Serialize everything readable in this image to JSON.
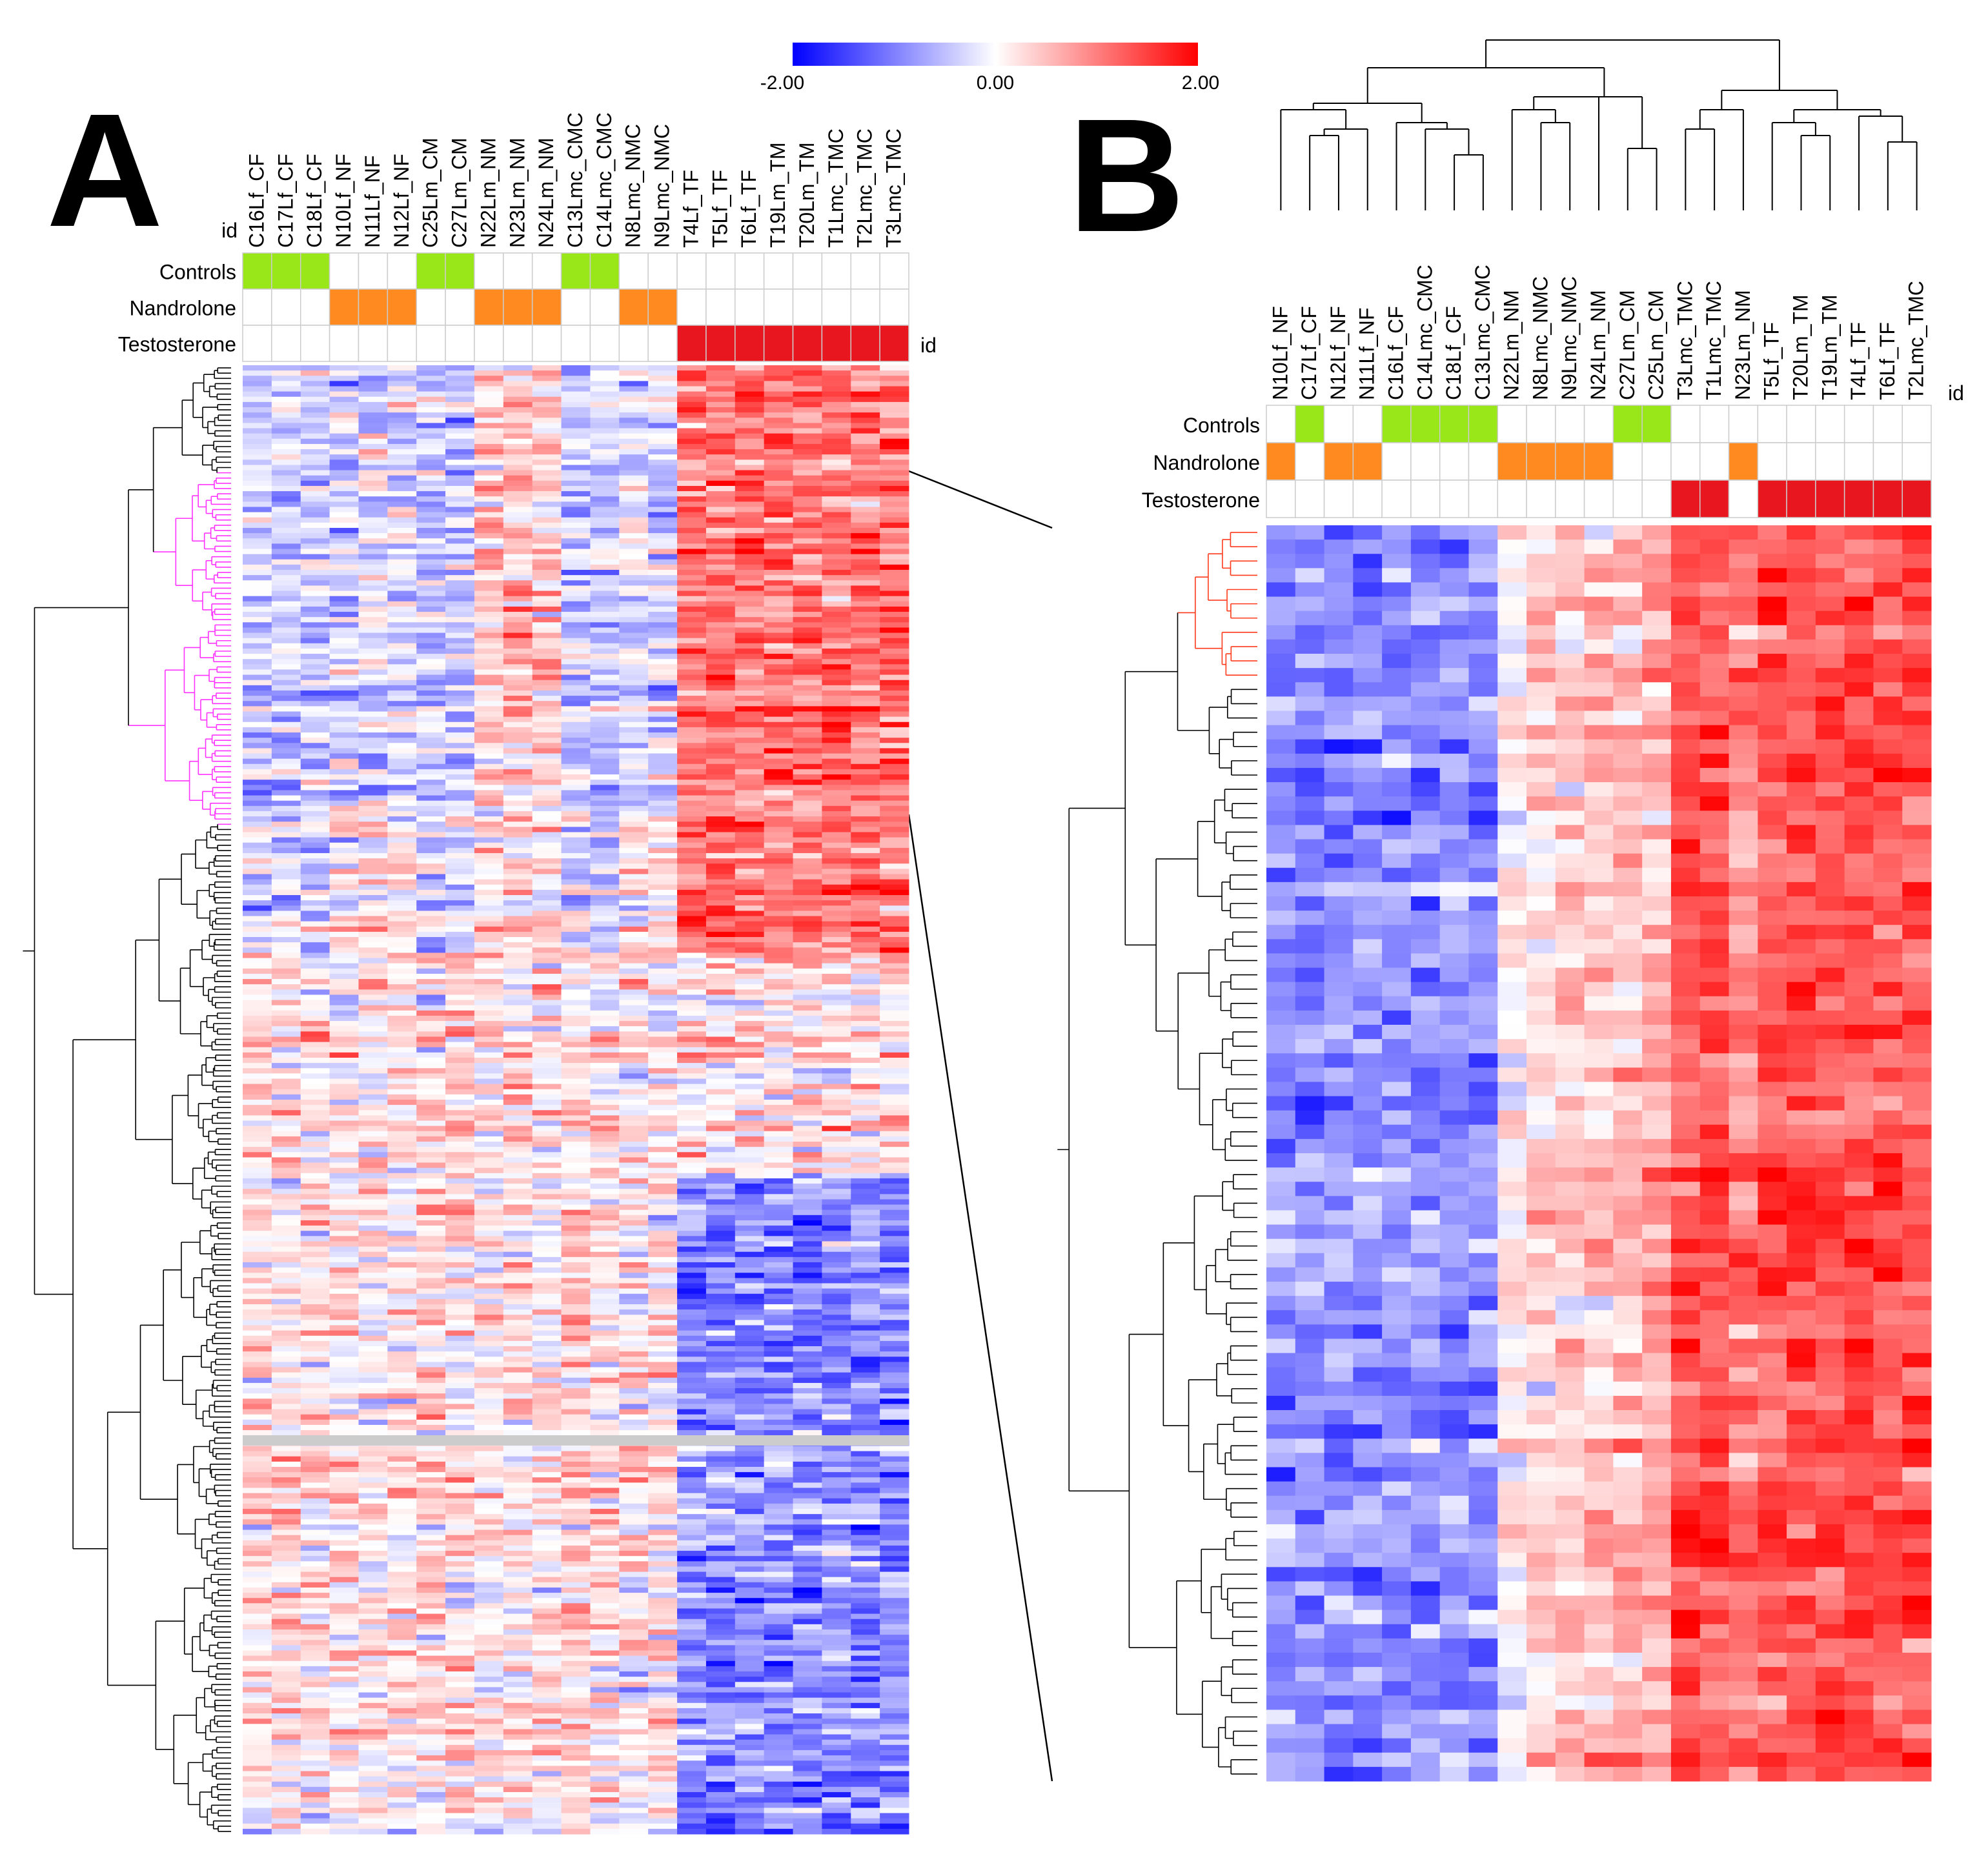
{
  "colors": {
    "low": "#0000ff",
    "mid": "#ffffff",
    "high": "#ff0000",
    "controls": "#99e619",
    "nandrolone": "#ff8a1f",
    "testosterone": "#e8161e",
    "dendrogram": "#000000",
    "cluster_A": "#ff33ff",
    "cluster_B": "#ff3a1a",
    "grid": "#cccccc"
  },
  "color_scale": {
    "min_label": "-2.00",
    "mid_label": "0.00",
    "max_label": "2.00",
    "min": -2,
    "max": 2
  },
  "chart_data": [
    {
      "type": "heatmap",
      "panel_label": "A",
      "id_label": "id",
      "groups": [
        "Controls",
        "Nandrolone",
        "Testosterone"
      ],
      "columns": [
        "C16Lf_CF",
        "C17Lf_CF",
        "C18Lf_CF",
        "N10Lf_NF",
        "N11Lf_NF",
        "N12Lf_NF",
        "C25Lm_CM",
        "C27Lm_CM",
        "N22Lm_NM",
        "N23Lm_NM",
        "N24Lm_NM",
        "C13Lmc_CMC",
        "C14Lmc_CMC",
        "N8Lmc_NMC",
        "N9Lmc_NMC",
        "T4Lf_TF",
        "T5Lf_TF",
        "T6Lf_TF",
        "T19Lm_TM",
        "T20Lm_TM",
        "T1Lmc_TMC",
        "T2Lmc_TMC",
        "T3Lmc_TMC"
      ],
      "column_groups": [
        "Controls",
        "Controls",
        "Controls",
        "Nandrolone",
        "Nandrolone",
        "Nandrolone",
        "Controls",
        "Controls",
        "Nandrolone",
        "Nandrolone",
        "Nandrolone",
        "Controls",
        "Controls",
        "Nandrolone",
        "Nandrolone",
        "Testosterone",
        "Testosterone",
        "Testosterone",
        "Testosterone",
        "Testosterone",
        "Testosterone",
        "Testosterone",
        "Testosterone"
      ],
      "n_rows": 280,
      "value_range": [
        -2,
        2
      ],
      "highlighted_cluster_rows": [
        20,
        87
      ]
    },
    {
      "type": "heatmap",
      "panel_label": "B",
      "id_label": "id",
      "groups": [
        "Controls",
        "Nandrolone",
        "Testosterone"
      ],
      "columns": [
        "N10Lf_NF",
        "C17Lf_CF",
        "N12Lf_NF",
        "N11Lf_NF",
        "C16Lf_CF",
        "C14Lmc_CMC",
        "C18Lf_CF",
        "C13Lmc_CMC",
        "N22Lm_NM",
        "N8Lmc_NMC",
        "N9Lmc_NMC",
        "N24Lm_NM",
        "C27Lm_CM",
        "C25Lm_CM",
        "T3Lmc_TMC",
        "T1Lmc_TMC",
        "N23Lm_NM",
        "T5Lf_TF",
        "T20Lm_TM",
        "T19Lm_TM",
        "T4Lf_TF",
        "T6Lf_TF",
        "T2Lmc_TMC"
      ],
      "column_groups": [
        "Nandrolone",
        "Controls",
        "Nandrolone",
        "Nandrolone",
        "Controls",
        "Controls",
        "Controls",
        "Controls",
        "Nandrolone",
        "Nandrolone",
        "Nandrolone",
        "Nandrolone",
        "Controls",
        "Controls",
        "Testosterone",
        "Testosterone",
        "Nandrolone",
        "Testosterone",
        "Testosterone",
        "Testosterone",
        "Testosterone",
        "Testosterone",
        "Testosterone"
      ],
      "n_rows": 88,
      "value_range": [
        -2,
        2
      ],
      "highlighted_cluster_rows": [
        0,
        10
      ]
    }
  ]
}
